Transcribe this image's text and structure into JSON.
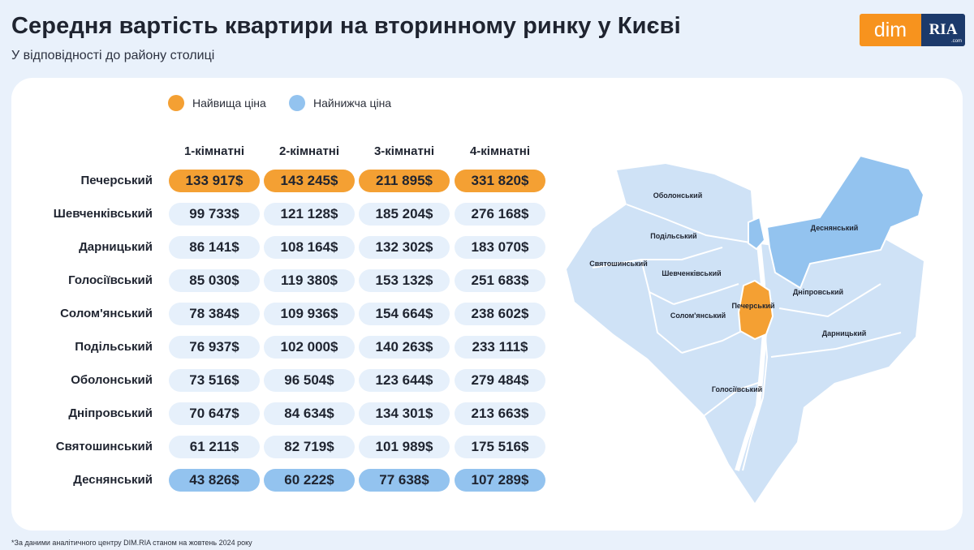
{
  "header": {
    "title": "Середня вартість квартири на вторинному ринку у Києві",
    "subtitle": "У відповідності до району столиці"
  },
  "logo": {
    "dim": "dim",
    "ria": "RIA",
    "com": ".com"
  },
  "legend": [
    {
      "label": "Найвища ціна",
      "color": "#f4a033"
    },
    {
      "label": "Найнижча ціна",
      "color": "#93c3ef"
    }
  ],
  "chart_data": {
    "type": "table",
    "title": "Середня вартість квартири на вторинному ринку у Києві",
    "columns": [
      "1-кімнатні",
      "2-кімнатні",
      "3-кімнатні",
      "4-кімнатні"
    ],
    "rows": [
      {
        "district": "Печерський",
        "values": [
          "133 917$",
          "143 245$",
          "211 895$",
          "331 820$"
        ],
        "highlight": "high"
      },
      {
        "district": "Шевченківський",
        "values": [
          "99 733$",
          "121 128$",
          "185 204$",
          "276 168$"
        ],
        "highlight": ""
      },
      {
        "district": "Дарницький",
        "values": [
          "86 141$",
          "108 164$",
          "132 302$",
          "183 070$"
        ],
        "highlight": ""
      },
      {
        "district": "Голосіївський",
        "values": [
          "85 030$",
          "119 380$",
          "153 132$",
          "251 683$"
        ],
        "highlight": ""
      },
      {
        "district": "Солом'янський",
        "values": [
          "78 384$",
          "109 936$",
          "154 664$",
          "238 602$"
        ],
        "highlight": ""
      },
      {
        "district": "Подільський",
        "values": [
          "76 937$",
          "102 000$",
          "140 263$",
          "233 111$"
        ],
        "highlight": ""
      },
      {
        "district": "Оболонський",
        "values": [
          "73 516$",
          "96 504$",
          "123 644$",
          "279 484$"
        ],
        "highlight": ""
      },
      {
        "district": "Дніпровський",
        "values": [
          "70 647$",
          "84 634$",
          "134 301$",
          "213 663$"
        ],
        "highlight": ""
      },
      {
        "district": "Святошинський",
        "values": [
          "61 211$",
          "82 719$",
          "101 989$",
          "175 516$"
        ],
        "highlight": ""
      },
      {
        "district": "Деснянський",
        "values": [
          "43 826$",
          "60 222$",
          "77 638$",
          "107 289$"
        ],
        "highlight": "low"
      }
    ]
  },
  "map": {
    "labels": [
      "Оболонський",
      "Деснянський",
      "Подільський",
      "Святошинський",
      "Шевченківський",
      "Дніпровський",
      "Печерський",
      "Солом'янський",
      "Дарницький",
      "Голосіївський"
    ],
    "colors": {
      "base": "#cfe2f6",
      "high": "#f4a033",
      "low": "#93c3ef",
      "border": "#ffffff"
    }
  },
  "footnote": "*За даними аналітичного центру DIM.RIA станом на жовтень 2024 року"
}
